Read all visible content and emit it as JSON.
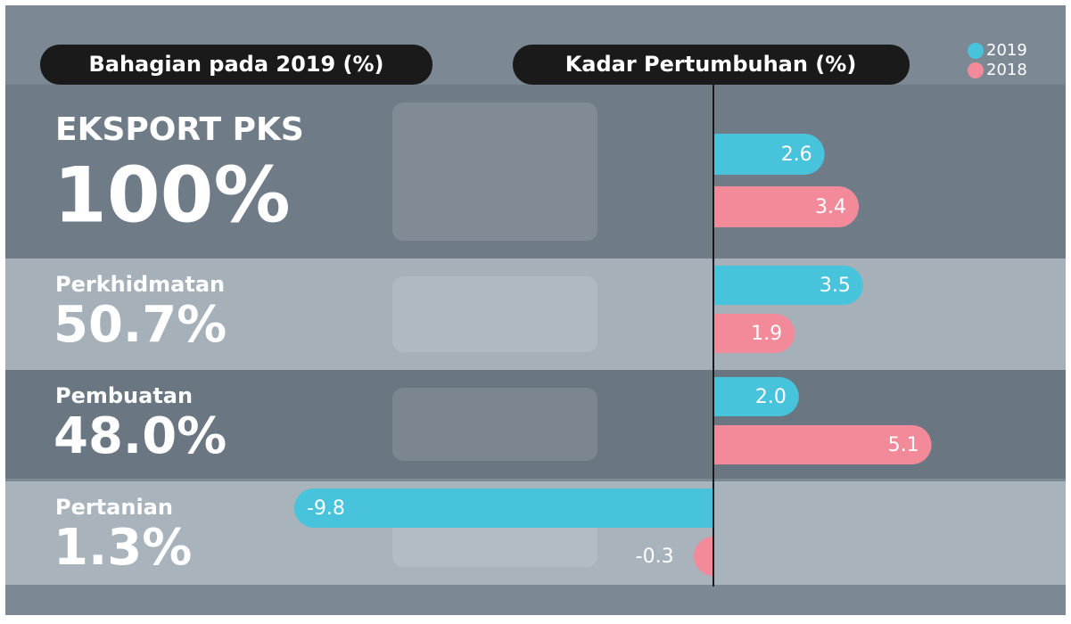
{
  "chart_data": {
    "type": "bar",
    "left_title": "Bahagian pada 2019 (%)",
    "title": "Kadar Pertumbuhan (%)",
    "categories": [
      "EKSPORT PKS",
      "Perkhidmatan",
      "Pembuatan",
      "Pertanian"
    ],
    "shares": [
      "100%",
      "50.7%",
      "48.0%",
      "1.3%"
    ],
    "series": [
      {
        "name": "2019",
        "color": "#47c3dc",
        "values": [
          2.6,
          3.5,
          2.0,
          -9.8
        ],
        "value_labels": [
          "2.6",
          "3.5",
          "2.0",
          "-9.8"
        ]
      },
      {
        "name": "2018",
        "color": "#f28a9a",
        "values": [
          3.4,
          1.9,
          5.1,
          -0.3
        ],
        "value_labels": [
          "3.4",
          "1.9",
          "5.1",
          "-0.3"
        ]
      }
    ]
  }
}
